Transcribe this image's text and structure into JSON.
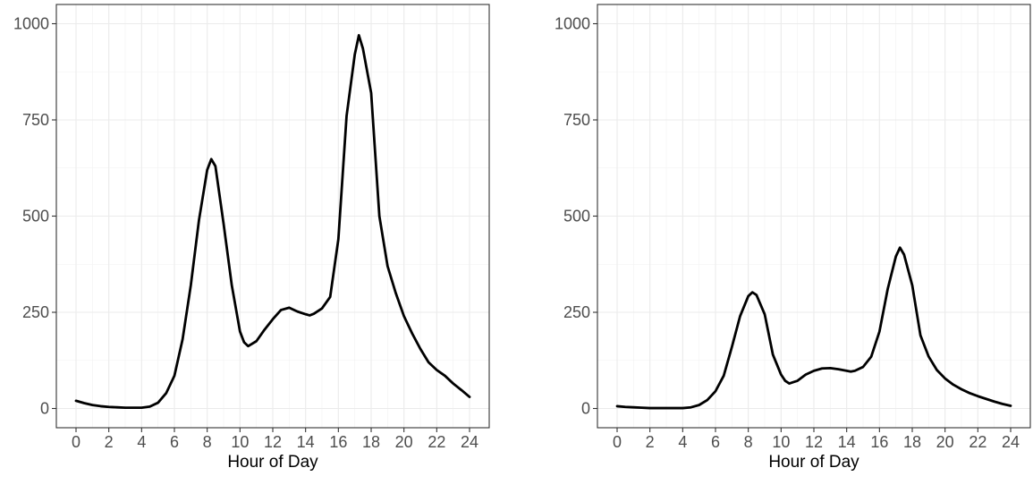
{
  "chart_data": [
    {
      "type": "line",
      "title": "",
      "xlabel": "Hour of Day",
      "ylabel": "",
      "xlim": [
        -1.2,
        25.2
      ],
      "ylim": [
        -50,
        1050
      ],
      "x_ticks": [
        0,
        2,
        4,
        6,
        8,
        10,
        12,
        14,
        16,
        18,
        20,
        22,
        24
      ],
      "y_ticks": [
        0,
        250,
        500,
        750,
        1000
      ],
      "grid": true,
      "legend": "none",
      "series": [
        {
          "color": "#000000",
          "x": [
            0,
            0.5,
            1,
            1.5,
            2,
            2.5,
            3,
            3.5,
            4,
            4.5,
            5,
            5.5,
            6,
            6.5,
            7,
            7.5,
            8,
            8.25,
            8.5,
            9,
            9.5,
            10,
            10.25,
            10.5,
            11,
            11.5,
            12,
            12.5,
            13,
            13.5,
            14,
            14.25,
            14.5,
            15,
            15.5,
            16,
            16.5,
            17,
            17.25,
            17.5,
            18,
            18.5,
            19,
            19.5,
            20,
            20.5,
            21,
            21.5,
            22,
            22.5,
            23,
            23.5,
            24
          ],
          "y": [
            20,
            14,
            9,
            6,
            4,
            3,
            2,
            2,
            2,
            5,
            15,
            40,
            85,
            180,
            320,
            490,
            620,
            648,
            630,
            480,
            320,
            200,
            172,
            162,
            175,
            205,
            232,
            256,
            262,
            252,
            245,
            242,
            246,
            260,
            290,
            440,
            760,
            920,
            970,
            935,
            820,
            500,
            370,
            300,
            240,
            195,
            155,
            120,
            100,
            85,
            65,
            48,
            30
          ]
        }
      ]
    },
    {
      "type": "line",
      "title": "",
      "xlabel": "Hour of Day",
      "ylabel": "",
      "xlim": [
        -1.2,
        25.2
      ],
      "ylim": [
        -50,
        1050
      ],
      "x_ticks": [
        0,
        2,
        4,
        6,
        8,
        10,
        12,
        14,
        16,
        18,
        20,
        22,
        24
      ],
      "y_ticks": [
        0,
        250,
        500,
        750,
        1000
      ],
      "grid": true,
      "legend": "none",
      "series": [
        {
          "color": "#000000",
          "x": [
            0,
            0.5,
            1,
            1.5,
            2,
            2.5,
            3,
            3.5,
            4,
            4.5,
            5,
            5.5,
            6,
            6.5,
            7,
            7.5,
            8,
            8.25,
            8.5,
            9,
            9.5,
            10,
            10.25,
            10.5,
            11,
            11.5,
            12,
            12.5,
            13,
            13.5,
            14,
            14.25,
            14.5,
            15,
            15.5,
            16,
            16.5,
            17,
            17.25,
            17.5,
            18,
            18.5,
            19,
            19.5,
            20,
            20.5,
            21,
            21.5,
            22,
            22.5,
            23,
            23.5,
            24
          ],
          "y": [
            6,
            4,
            3,
            2,
            1,
            1,
            1,
            1,
            1,
            3,
            9,
            22,
            45,
            85,
            160,
            240,
            292,
            302,
            295,
            245,
            140,
            88,
            72,
            65,
            72,
            88,
            98,
            104,
            105,
            102,
            98,
            96,
            98,
            108,
            135,
            200,
            310,
            395,
            418,
            400,
            320,
            190,
            135,
            100,
            78,
            62,
            50,
            40,
            32,
            25,
            18,
            12,
            7
          ]
        }
      ]
    }
  ]
}
